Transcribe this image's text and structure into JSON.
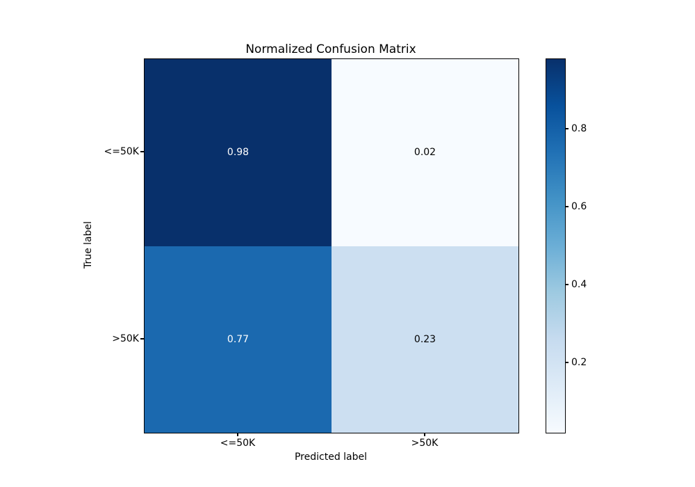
{
  "chart_data": {
    "type": "heatmap",
    "title": "Normalized Confusion Matrix",
    "xlabel": "Predicted label",
    "ylabel": "True label",
    "x_tick_labels": [
      "<=50K",
      ">50K"
    ],
    "y_tick_labels": [
      "<=50K",
      ">50K"
    ],
    "matrix": [
      [
        0.98,
        0.02
      ],
      [
        0.77,
        0.23
      ]
    ],
    "colormap": "Blues",
    "vmin": 0.02,
    "vmax": 0.98,
    "colorbar_tick_values": [
      0.2,
      0.4,
      0.6,
      0.8
    ],
    "colorbar_position": "right",
    "grid": false
  },
  "title": "Normalized Confusion Matrix",
  "axis": {
    "xlabel": "Predicted label",
    "ylabel": "True label",
    "x_ticks": [
      "<=50K",
      ">50K"
    ],
    "y_ticks": [
      "<=50K",
      ">50K"
    ]
  },
  "cells": [
    {
      "value": "0.98",
      "bg": "#08306b",
      "fg": "#ffffff"
    },
    {
      "value": "0.02",
      "bg": "#f7fbff",
      "fg": "#000000"
    },
    {
      "value": "0.77",
      "bg": "#1b69af",
      "fg": "#ffffff"
    },
    {
      "value": "0.23",
      "bg": "#ccdff1",
      "fg": "#000000"
    }
  ],
  "colorbar": {
    "tick_labels": [
      "0.8",
      "0.6",
      "0.4",
      "0.2"
    ],
    "gradient_colors": [
      "#f7fbff",
      "#deebf7",
      "#c6dbef",
      "#9ecae1",
      "#6baed6",
      "#4292c6",
      "#2171b5",
      "#08519c",
      "#08306b"
    ]
  }
}
